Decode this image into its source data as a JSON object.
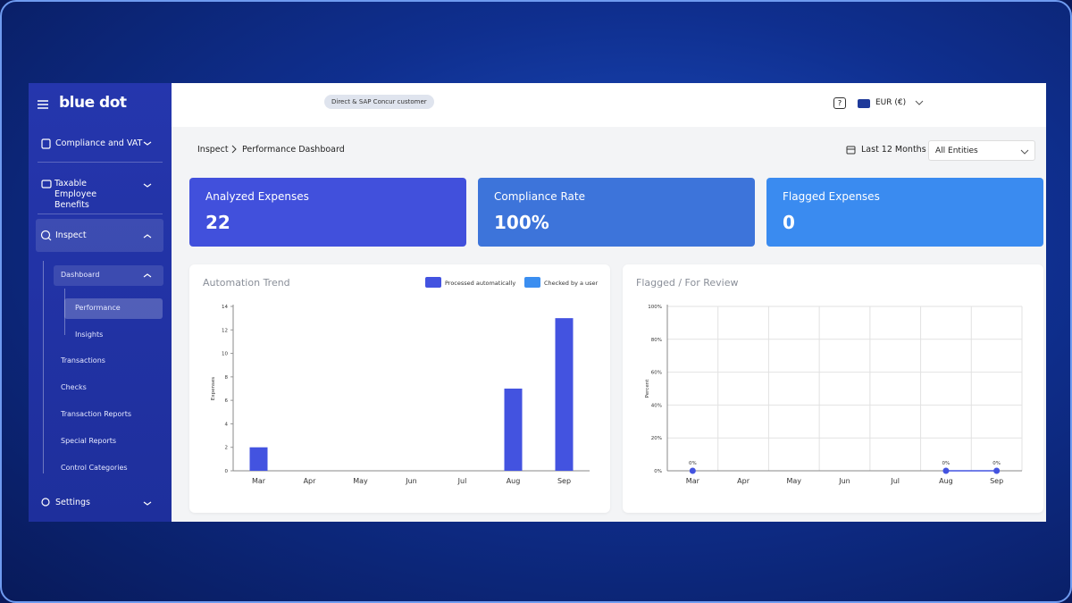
{
  "sidebar": {
    "brand": "blue dot",
    "items": [
      {
        "label": "Compliance and VAT"
      },
      {
        "label": "Taxable Employee Benefits"
      },
      {
        "label": "Inspect"
      },
      {
        "label": "Dashboard"
      },
      {
        "label": "Performance"
      },
      {
        "label": "Insights"
      },
      {
        "label": "Transactions"
      },
      {
        "label": "Checks"
      },
      {
        "label": "Transaction Reports"
      },
      {
        "label": "Special Reports"
      },
      {
        "label": "Control Categories"
      },
      {
        "label": "Settings"
      }
    ]
  },
  "header": {
    "badge": "Direct & SAP Concur customer",
    "help": "?",
    "currency": "EUR (€)"
  },
  "breadcrumb": [
    "Inspect",
    "Performance Dashboard"
  ],
  "filters": {
    "period": "Last 12 Months",
    "entity": "All Entities"
  },
  "kpis": [
    {
      "label": "Analyzed Expenses",
      "value": "22",
      "color": "#4150dc"
    },
    {
      "label": "Compliance Rate",
      "value": "100%",
      "color": "#3d74da"
    },
    {
      "label": "Flagged Expenses",
      "value": "0",
      "color": "#3a8bf0"
    }
  ],
  "chart_data": [
    {
      "type": "bar",
      "title": "Automation Trend",
      "stacked": true,
      "ylabel": "Expenses",
      "categories": [
        "Mar",
        "Apr",
        "May",
        "Jun",
        "Jul",
        "Aug",
        "Sep"
      ],
      "series": [
        {
          "name": "Processed automatically",
          "color": "#4353e0",
          "values": [
            2,
            0,
            0,
            0,
            0,
            7,
            13
          ]
        },
        {
          "name": "Checked by a user",
          "color": "#3b8ef0",
          "values": [
            0,
            0,
            0,
            0,
            0,
            0,
            0
          ]
        }
      ],
      "ylim": [
        0,
        14
      ],
      "yticks": [
        0,
        2,
        4,
        6,
        8,
        10,
        12,
        14
      ],
      "grid": false
    },
    {
      "type": "line",
      "title": "Flagged / For Review",
      "ylabel": "Percent",
      "categories": [
        "Mar",
        "Apr",
        "May",
        "Jun",
        "Jul",
        "Aug",
        "Sep"
      ],
      "series": [
        {
          "color": "#4353e0",
          "values": [
            0,
            null,
            null,
            null,
            null,
            0,
            0
          ],
          "value_labels": [
            "0%",
            null,
            null,
            null,
            null,
            "0%",
            "0%"
          ]
        }
      ],
      "ylim": [
        0,
        100
      ],
      "yticks": [
        {
          "value": 0,
          "label": "0%"
        },
        {
          "value": 20,
          "label": "20%"
        },
        {
          "value": 40,
          "label": "40%"
        },
        {
          "value": 60,
          "label": "60%"
        },
        {
          "value": 80,
          "label": "80%"
        },
        {
          "value": 100,
          "label": "100%"
        }
      ],
      "grid": true
    }
  ]
}
